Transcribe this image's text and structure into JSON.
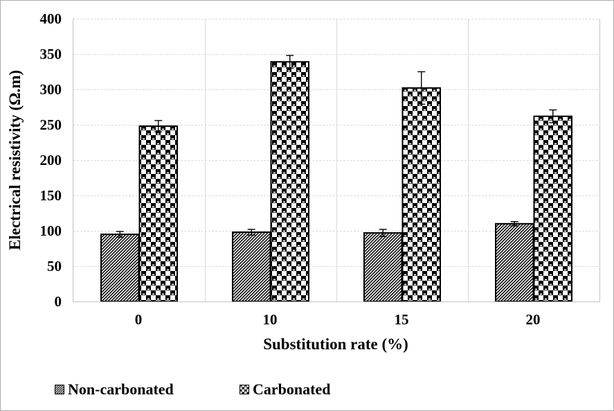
{
  "chart_data": {
    "type": "bar",
    "title": "",
    "xlabel": "Substitution rate (%)",
    "ylabel": "Electrical resistivity (Ω.m)",
    "categories": [
      "0",
      "10",
      "15",
      "20"
    ],
    "series": [
      {
        "name": "Non-carbonated",
        "pattern": "diagonal-hatch",
        "values": [
          95,
          98,
          97,
          110
        ],
        "errors": [
          4,
          4,
          5,
          3
        ]
      },
      {
        "name": "Carbonated",
        "pattern": "checker-spheres",
        "values": [
          248,
          339,
          302,
          262
        ],
        "errors": [
          8,
          9,
          23,
          9
        ]
      }
    ],
    "ylim": [
      0,
      400
    ],
    "ytick_step": 50,
    "grid": true,
    "error_bars": true,
    "legend_position": "bottom-left",
    "colors": {
      "bar_fill": "#000000",
      "bar_outline": "#000000",
      "gridline": "#d9d9d9",
      "axis_line": "#c3c3c3",
      "text": "#000000",
      "background": "#ffffff",
      "frame_border": "#adadad"
    }
  }
}
